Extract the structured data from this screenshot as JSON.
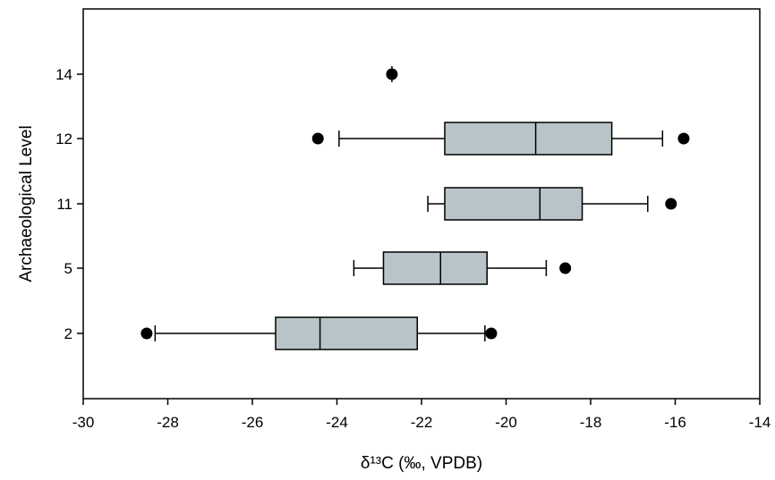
{
  "chart_data": {
    "type": "boxplot",
    "orientation": "horizontal",
    "xlabel": "δ¹³C (‰, VPDB)",
    "ylabel": "Archaeological Level",
    "xlim": [
      -30,
      -14
    ],
    "xticks": [
      -30,
      -28,
      -26,
      -24,
      -22,
      -20,
      -18,
      -16,
      -14
    ],
    "xtick_labels": [
      "-30",
      "-28",
      "-26",
      "-24",
      "-22",
      "-20",
      "-18",
      "-16",
      "-14"
    ],
    "categories": [
      "2",
      "5",
      "11",
      "12",
      "14"
    ],
    "box_color": "#b8c4c8",
    "grid": false,
    "boxes": [
      {
        "level": "2",
        "whisker_low": -28.3,
        "q1": -25.45,
        "median": -24.4,
        "q3": -22.1,
        "whisker_high": -20.5,
        "outliers": [
          -28.5,
          -20.35
        ]
      },
      {
        "level": "5",
        "whisker_low": -23.6,
        "q1": -22.9,
        "median": -21.55,
        "q3": -20.45,
        "whisker_high": -19.05,
        "outliers": [
          -18.6
        ]
      },
      {
        "level": "11",
        "whisker_low": -21.85,
        "q1": -21.45,
        "median": -19.2,
        "q3": -18.2,
        "whisker_high": -16.65,
        "outliers": [
          -16.1
        ]
      },
      {
        "level": "12",
        "whisker_low": -23.95,
        "q1": -21.45,
        "median": -19.3,
        "q3": -17.5,
        "whisker_high": -16.3,
        "outliers": [
          -24.45,
          -15.8
        ]
      },
      {
        "level": "14",
        "whisker_low": -22.7,
        "q1": -22.7,
        "median": -22.7,
        "q3": -22.7,
        "whisker_high": -22.7,
        "outliers": [
          -22.7
        ]
      }
    ]
  }
}
